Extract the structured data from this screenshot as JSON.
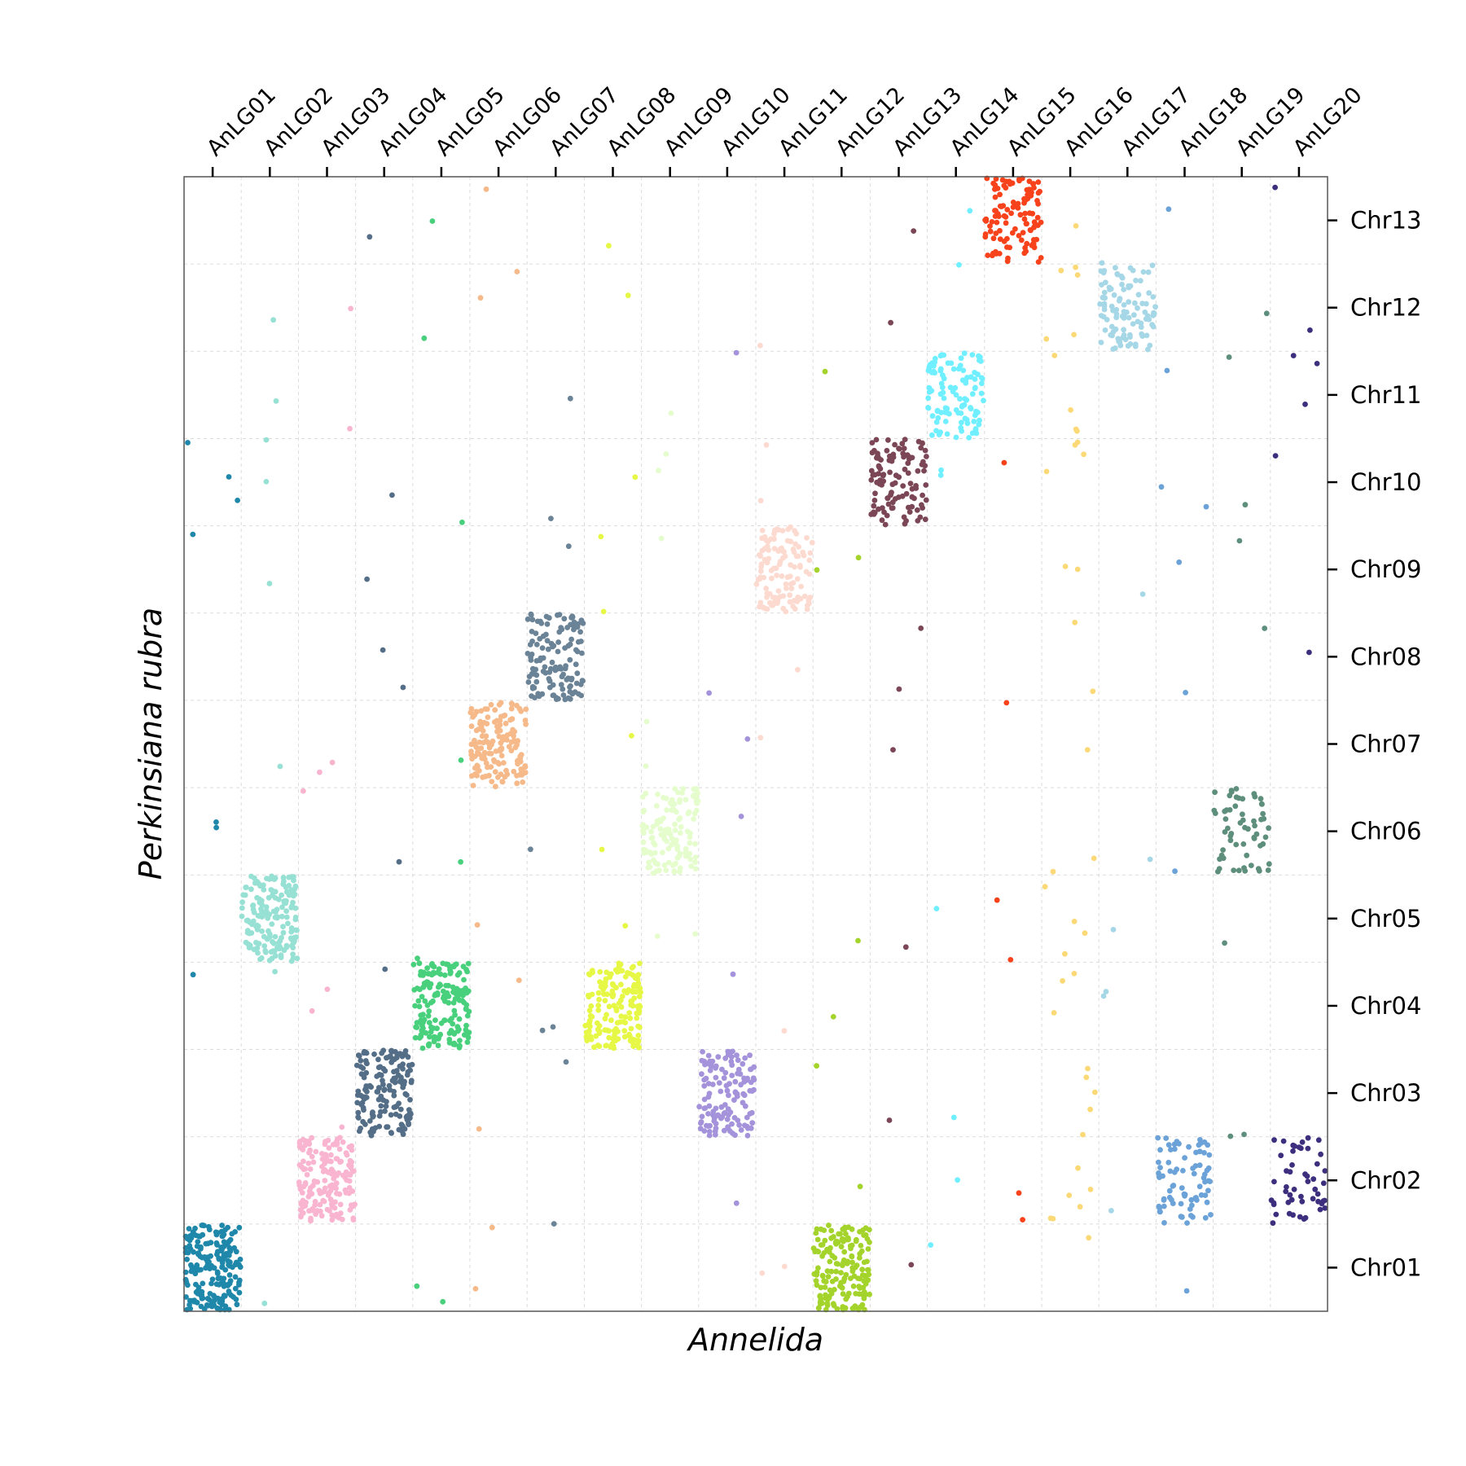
{
  "chart_data": {
    "type": "scatter",
    "title": "",
    "xlabel": "Annelida",
    "ylabel": "Perkinsiana rubra",
    "x_categories": [
      "AnLG01",
      "AnLG02",
      "AnLG03",
      "AnLG04",
      "AnLG05",
      "AnLG06",
      "AnLG07",
      "AnLG08",
      "AnLG09",
      "AnLG10",
      "AnLG11",
      "AnLG12",
      "AnLG13",
      "AnLG14",
      "AnLG15",
      "AnLG16",
      "AnLG17",
      "AnLG18",
      "AnLG19",
      "AnLG20"
    ],
    "y_categories": [
      "Chr01",
      "Chr02",
      "Chr03",
      "Chr04",
      "Chr05",
      "Chr06",
      "Chr07",
      "Chr08",
      "Chr09",
      "Chr10",
      "Chr11",
      "Chr12",
      "Chr13"
    ],
    "x_axis_position": "top",
    "y_axis_position": "right",
    "grid": true,
    "colors": {
      "AnLG01": "#1f88aa",
      "AnLG02": "#96e0d4",
      "AnLG03": "#f9b5d0",
      "AnLG04": "#546e87",
      "AnLG05": "#49d07c",
      "AnLG06": "#f6b989",
      "AnLG07": "#6b8396",
      "AnLG08": "#e6f845",
      "AnLG09": "#e5fdcd",
      "AnLG10": "#a493da",
      "AnLG11": "#fddad0",
      "AnLG12": "#a4d42c",
      "AnLG13": "#7b4656",
      "AnLG14": "#6fefff",
      "AnLG15": "#f8421b",
      "AnLG16": "#fcd977",
      "AnLG17": "#a5d7e7",
      "AnLG18": "#6ba2d8",
      "AnLG19": "#5e8e7c",
      "AnLG20": "#3e2f7e"
    },
    "blocks": [
      {
        "lg": "AnLG01",
        "chr": "Chr01",
        "count": 200
      },
      {
        "lg": "AnLG02",
        "chr": "Chr05",
        "count": 170
      },
      {
        "lg": "AnLG03",
        "chr": "Chr02",
        "count": 170
      },
      {
        "lg": "AnLG04",
        "chr": "Chr03",
        "count": 160
      },
      {
        "lg": "AnLG05",
        "chr": "Chr04",
        "count": 170
      },
      {
        "lg": "AnLG06",
        "chr": "Chr07",
        "count": 150
      },
      {
        "lg": "AnLG07",
        "chr": "Chr08",
        "count": 130
      },
      {
        "lg": "AnLG08",
        "chr": "Chr04",
        "count": 160
      },
      {
        "lg": "AnLG09",
        "chr": "Chr06",
        "count": 130
      },
      {
        "lg": "AnLG10",
        "chr": "Chr03",
        "count": 130
      },
      {
        "lg": "AnLG11",
        "chr": "Chr09",
        "count": 120
      },
      {
        "lg": "AnLG12",
        "chr": "Chr01",
        "count": 170
      },
      {
        "lg": "AnLG13",
        "chr": "Chr10",
        "count": 110
      },
      {
        "lg": "AnLG14",
        "chr": "Chr11",
        "count": 110
      },
      {
        "lg": "AnLG15",
        "chr": "Chr13",
        "count": 110
      },
      {
        "lg": "AnLG17",
        "chr": "Chr12",
        "count": 100
      },
      {
        "lg": "AnLG18",
        "chr": "Chr02",
        "count": 80
      },
      {
        "lg": "AnLG19",
        "chr": "Chr06",
        "count": 60
      },
      {
        "lg": "AnLG20",
        "chr": "Chr02",
        "count": 50
      }
    ],
    "scattered_points_per_lg": 8,
    "lg16_points": 40
  }
}
